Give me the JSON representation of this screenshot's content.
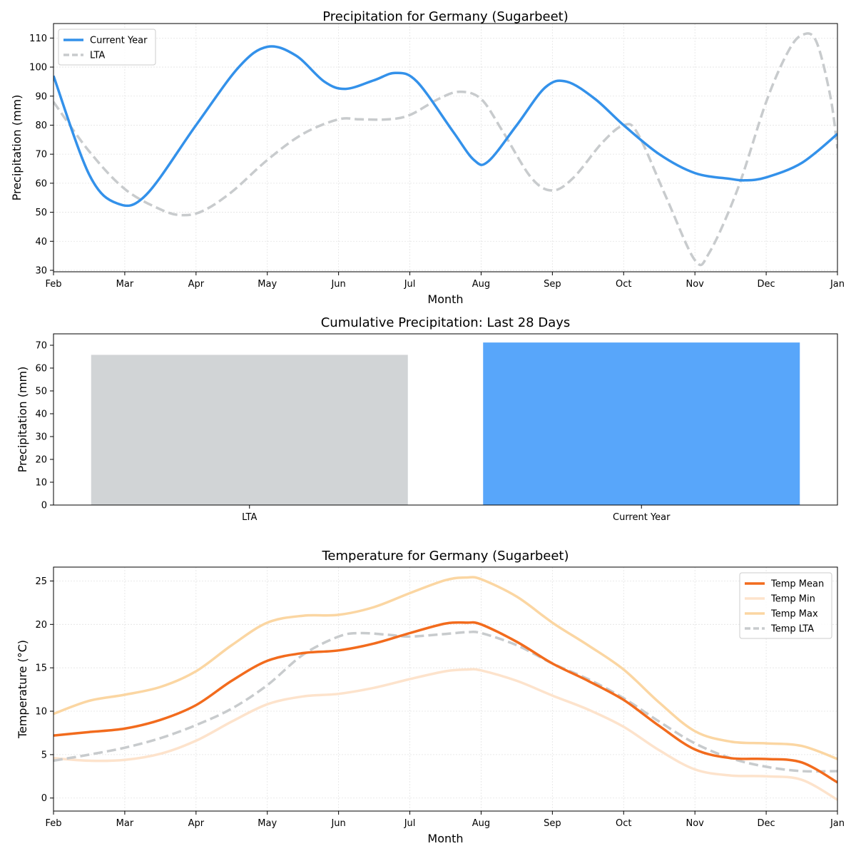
{
  "chart_data": [
    {
      "type": "line",
      "title": "Precipitation for Germany (Sugarbeet)",
      "xlabel": "Month",
      "ylabel": "Precipitation (mm)",
      "x_tick_labels": [
        "Feb",
        "Mar",
        "Apr",
        "May",
        "Jun",
        "Jul",
        "Aug",
        "Sep",
        "Oct",
        "Nov",
        "Dec",
        "Jan"
      ],
      "xlim": [
        0,
        11
      ],
      "ylim": [
        29.5,
        115
      ],
      "y_ticks": [
        30,
        40,
        50,
        60,
        70,
        80,
        90,
        100,
        110
      ],
      "grid": true,
      "legend_position": "top-left",
      "series": [
        {
          "name": "Current Year",
          "color": "#3391ea",
          "style": "solid",
          "points": [
            [
              0,
              97
            ],
            [
              0.5,
              63
            ],
            [
              0.9,
              53
            ],
            [
              1.3,
              56
            ],
            [
              2,
              80
            ],
            [
              2.6,
              100
            ],
            [
              3,
              107
            ],
            [
              3.4,
              104
            ],
            [
              3.8,
              95
            ],
            [
              4.1,
              92.5
            ],
            [
              4.5,
              95.5
            ],
            [
              4.8,
              98
            ],
            [
              5.1,
              95
            ],
            [
              5.6,
              78
            ],
            [
              5.9,
              68
            ],
            [
              6.1,
              67.5
            ],
            [
              6.5,
              80
            ],
            [
              6.9,
              93
            ],
            [
              7.2,
              95
            ],
            [
              7.6,
              89
            ],
            [
              8,
              80
            ],
            [
              8.5,
              70
            ],
            [
              9,
              63.5
            ],
            [
              9.5,
              61.5
            ],
            [
              9.7,
              61
            ],
            [
              10,
              62
            ],
            [
              10.5,
              67
            ],
            [
              11,
              77
            ]
          ]
        },
        {
          "name": "LTA",
          "color": "#c8cbcd",
          "style": "dashed",
          "points": [
            [
              0,
              88
            ],
            [
              0.5,
              71
            ],
            [
              1,
              58
            ],
            [
              1.5,
              51
            ],
            [
              1.8,
              49
            ],
            [
              2.1,
              50.5
            ],
            [
              2.5,
              57
            ],
            [
              3,
              68
            ],
            [
              3.5,
              77
            ],
            [
              4,
              82
            ],
            [
              4.3,
              82
            ],
            [
              4.7,
              82
            ],
            [
              5,
              83.5
            ],
            [
              5.4,
              89
            ],
            [
              5.7,
              91.5
            ],
            [
              6,
              89
            ],
            [
              6.3,
              78
            ],
            [
              6.7,
              62
            ],
            [
              7,
              57.5
            ],
            [
              7.3,
              62
            ],
            [
              7.7,
              74
            ],
            [
              8,
              80
            ],
            [
              8.2,
              77
            ],
            [
              8.6,
              55
            ],
            [
              9,
              33.5
            ],
            [
              9.2,
              36
            ],
            [
              9.6,
              58
            ],
            [
              10,
              88
            ],
            [
              10.3,
              105
            ],
            [
              10.5,
              111
            ],
            [
              10.7,
              109
            ],
            [
              10.9,
              90
            ],
            [
              11,
              72
            ]
          ]
        }
      ]
    },
    {
      "type": "bar",
      "title": "Cumulative Precipitation: Last 28 Days",
      "xlabel": "",
      "ylabel": "Precipitation (mm)",
      "categories": [
        "LTA",
        "Current Year"
      ],
      "values": [
        65.8,
        71.2
      ],
      "colors": [
        "#d1d4d6",
        "#58a6fa"
      ],
      "ylim": [
        0,
        75
      ],
      "y_ticks": [
        0,
        10,
        20,
        30,
        40,
        50,
        60,
        70
      ],
      "grid": false
    },
    {
      "type": "line",
      "title": "Temperature for Germany (Sugarbeet)",
      "xlabel": "Month",
      "ylabel": "Temperature (°C)",
      "x_tick_labels": [
        "Feb",
        "Mar",
        "Apr",
        "May",
        "Jun",
        "Jul",
        "Aug",
        "Sep",
        "Oct",
        "Nov",
        "Dec",
        "Jan"
      ],
      "xlim": [
        0,
        11
      ],
      "ylim": [
        -1.5,
        26.6
      ],
      "y_ticks": [
        0,
        5,
        10,
        15,
        20,
        25
      ],
      "grid": true,
      "legend_position": "top-right",
      "series": [
        {
          "name": "Temp Mean",
          "color": "#f26b1d",
          "style": "solid",
          "points": [
            [
              0,
              7.2
            ],
            [
              0.5,
              7.6
            ],
            [
              1,
              8
            ],
            [
              1.5,
              9
            ],
            [
              2,
              10.7
            ],
            [
              2.5,
              13.5
            ],
            [
              3,
              15.8
            ],
            [
              3.5,
              16.7
            ],
            [
              4,
              17
            ],
            [
              4.5,
              17.8
            ],
            [
              5,
              19
            ],
            [
              5.5,
              20.1
            ],
            [
              5.8,
              20.2
            ],
            [
              6,
              20
            ],
            [
              6.5,
              18
            ],
            [
              7,
              15.5
            ],
            [
              7.5,
              13.5
            ],
            [
              8,
              11.3
            ],
            [
              8.5,
              8.3
            ],
            [
              9,
              5.6
            ],
            [
              9.5,
              4.6
            ],
            [
              10,
              4.5
            ],
            [
              10.5,
              4.1
            ],
            [
              11,
              1.8
            ]
          ]
        },
        {
          "name": "Temp Min",
          "color": "#fde3cc",
          "style": "solid",
          "points": [
            [
              0,
              4.6
            ],
            [
              0.5,
              4.3
            ],
            [
              1,
              4.4
            ],
            [
              1.5,
              5.1
            ],
            [
              2,
              6.6
            ],
            [
              2.5,
              8.8
            ],
            [
              3,
              10.8
            ],
            [
              3.5,
              11.7
            ],
            [
              4,
              12
            ],
            [
              4.5,
              12.7
            ],
            [
              5,
              13.7
            ],
            [
              5.5,
              14.6
            ],
            [
              5.8,
              14.8
            ],
            [
              6,
              14.7
            ],
            [
              6.5,
              13.5
            ],
            [
              7,
              11.8
            ],
            [
              7.5,
              10.2
            ],
            [
              8,
              8.2
            ],
            [
              8.5,
              5.5
            ],
            [
              9,
              3.3
            ],
            [
              9.5,
              2.6
            ],
            [
              10,
              2.5
            ],
            [
              10.5,
              2.1
            ],
            [
              11,
              -0.2
            ]
          ]
        },
        {
          "name": "Temp Max",
          "color": "#fbd6a2",
          "style": "solid",
          "points": [
            [
              0,
              9.7
            ],
            [
              0.5,
              11.2
            ],
            [
              1,
              11.9
            ],
            [
              1.5,
              12.8
            ],
            [
              2,
              14.6
            ],
            [
              2.5,
              17.6
            ],
            [
              3,
              20.2
            ],
            [
              3.5,
              21
            ],
            [
              4,
              21.1
            ],
            [
              4.5,
              22
            ],
            [
              5,
              23.6
            ],
            [
              5.5,
              25.1
            ],
            [
              5.8,
              25.4
            ],
            [
              6,
              25.2
            ],
            [
              6.5,
              23.2
            ],
            [
              7,
              20.2
            ],
            [
              7.5,
              17.6
            ],
            [
              8,
              14.8
            ],
            [
              8.5,
              11
            ],
            [
              9,
              7.7
            ],
            [
              9.5,
              6.5
            ],
            [
              10,
              6.3
            ],
            [
              10.5,
              6
            ],
            [
              11,
              4.5
            ]
          ]
        },
        {
          "name": "Temp LTA",
          "color": "#c8cbcd",
          "style": "dashed",
          "points": [
            [
              0,
              4.3
            ],
            [
              0.5,
              5
            ],
            [
              1,
              5.8
            ],
            [
              1.5,
              6.9
            ],
            [
              2,
              8.4
            ],
            [
              2.5,
              10.3
            ],
            [
              3,
              13
            ],
            [
              3.5,
              16.5
            ],
            [
              4,
              18.6
            ],
            [
              4.3,
              19
            ],
            [
              4.7,
              18.8
            ],
            [
              5,
              18.6
            ],
            [
              5.5,
              18.9
            ],
            [
              5.8,
              19.1
            ],
            [
              6,
              19
            ],
            [
              6.5,
              17.6
            ],
            [
              7,
              15.5
            ],
            [
              7.5,
              13.7
            ],
            [
              8,
              11.5
            ],
            [
              8.5,
              8.8
            ],
            [
              9,
              6.3
            ],
            [
              9.5,
              4.6
            ],
            [
              10,
              3.6
            ],
            [
              10.5,
              3.1
            ],
            [
              11,
              3.1
            ]
          ]
        }
      ]
    }
  ]
}
